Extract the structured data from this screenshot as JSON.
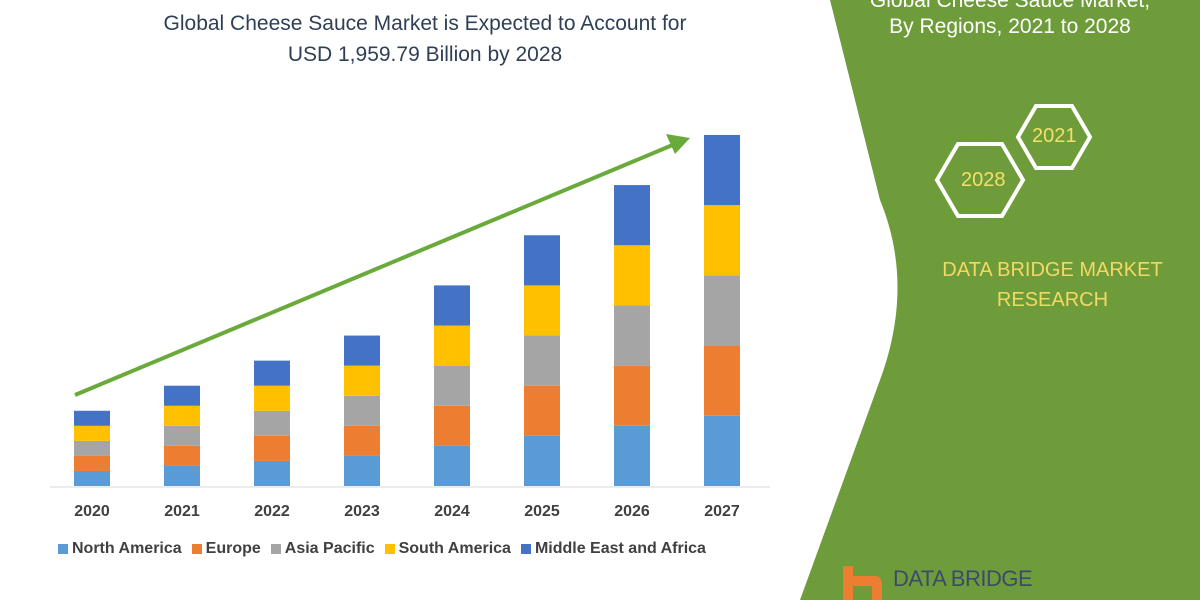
{
  "title_line1": "Global Cheese Sauce Market is Expected to Account for",
  "title_line2": "USD 1,959.79 Billion by 2028",
  "side_panel": {
    "title_line1": "Global Cheese Sauce Market,",
    "title_line2": "By Regions, 2021 to 2028",
    "hex_top": "2021",
    "hex_bottom": "2028",
    "brand_line1": "DATA BRIDGE MARKET",
    "brand_line2": "RESEARCH",
    "logo_text": "DATA BRIDGE",
    "panel_color": "#6f9c3a",
    "brand_text_color": "#f3d964"
  },
  "chart_data": {
    "type": "bar",
    "stacked": true,
    "categories": [
      "2020",
      "2021",
      "2022",
      "2023",
      "2024",
      "2025",
      "2026",
      "2027"
    ],
    "series": [
      {
        "name": "North America",
        "color": "#5b9bd5",
        "values": [
          15,
          20,
          25,
          30,
          40,
          50,
          60,
          70
        ]
      },
      {
        "name": "Europe",
        "color": "#ed7d31",
        "values": [
          15,
          20,
          25,
          30,
          40,
          50,
          60,
          70
        ]
      },
      {
        "name": "Asia Pacific",
        "color": "#a5a5a5",
        "values": [
          15,
          20,
          25,
          30,
          40,
          50,
          60,
          70
        ]
      },
      {
        "name": "South America",
        "color": "#ffc000",
        "values": [
          15,
          20,
          25,
          30,
          40,
          50,
          60,
          70
        ]
      },
      {
        "name": "Middle East and Africa",
        "color": "#4472c4",
        "values": [
          15,
          20,
          25,
          30,
          40,
          50,
          60,
          70
        ]
      }
    ],
    "y_axis_shown": false,
    "grid": false,
    "legend_position": "bottom",
    "trend_arrow_color": "#6aaa3a"
  }
}
